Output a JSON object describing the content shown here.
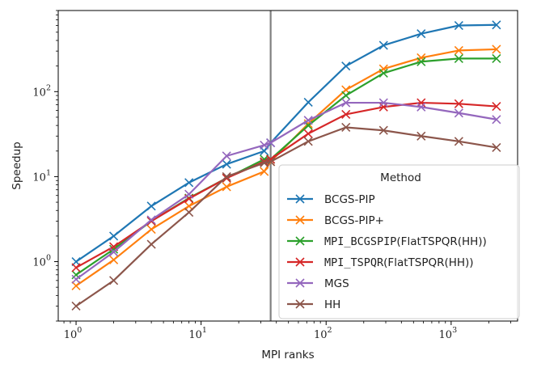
{
  "chart_data": {
    "type": "line",
    "xscale": "log",
    "yscale": "log",
    "xlabel": "MPI ranks",
    "ylabel": "Speedup",
    "xlim": [
      0.72,
      3400
    ],
    "ylim": [
      0.2,
      900
    ],
    "x_ticks": [
      {
        "value": 1,
        "base": "10",
        "exp": "0"
      },
      {
        "value": 10,
        "base": "10",
        "exp": "1"
      },
      {
        "value": 100,
        "base": "10",
        "exp": "2"
      },
      {
        "value": 1000,
        "base": "10",
        "exp": "3"
      }
    ],
    "y_ticks": [
      {
        "value": 1,
        "base": "10",
        "exp": "0"
      },
      {
        "value": 10,
        "base": "10",
        "exp": "1"
      },
      {
        "value": 100,
        "base": "10",
        "exp": "2"
      }
    ],
    "vline": {
      "x": 36,
      "color": "#808080"
    },
    "legend": {
      "title": "Method",
      "placement": "lower-right"
    },
    "x": [
      1,
      2,
      4,
      8,
      16,
      32,
      36,
      72,
      144,
      288,
      576,
      1152,
      2304
    ],
    "series": [
      {
        "name": "BCGS-PIP",
        "parts": [
          {
            "text": "BCGS-PIP",
            "mono": false
          }
        ],
        "color": "#1f77b4",
        "values": [
          1.0,
          2.0,
          4.5,
          8.5,
          14,
          20,
          25,
          75,
          200,
          350,
          480,
          600,
          610
        ]
      },
      {
        "name": "BCGS-PIP+",
        "parts": [
          {
            "text": "BCGS-PIP+",
            "mono": false
          }
        ],
        "color": "#ff7f0e",
        "values": [
          0.52,
          1.05,
          2.4,
          4.5,
          7.6,
          11.5,
          15,
          42,
          105,
          185,
          250,
          305,
          315
        ]
      },
      {
        "name": "MPI_BCGSPIP(FlatTSPQR(HH))",
        "parts": [
          {
            "text": "MPI_BCGSPIP",
            "mono": true
          },
          {
            "text": "(FlatTSPQR(HH))",
            "mono": false
          }
        ],
        "color": "#2ca02c",
        "values": [
          0.7,
          1.4,
          3.0,
          5.6,
          9.6,
          16,
          16,
          40,
          90,
          165,
          225,
          245,
          245
        ]
      },
      {
        "name": "MPI_TSPQR(FlatTSPQR(HH))",
        "parts": [
          {
            "text": "MPI_TSPQR",
            "mono": true
          },
          {
            "text": "(FlatTSPQR(HH))",
            "mono": false
          }
        ],
        "color": "#d62728",
        "values": [
          0.85,
          1.5,
          3.0,
          5.5,
          9.6,
          15,
          16,
          32,
          54,
          66,
          74,
          72,
          67
        ]
      },
      {
        "name": "MGS",
        "parts": [
          {
            "text": "MGS",
            "mono": false
          }
        ],
        "color": "#9467bd",
        "values": [
          0.62,
          1.3,
          3.1,
          6.2,
          17.5,
          23.5,
          25,
          46,
          74,
          74,
          66,
          56,
          47
        ]
      },
      {
        "name": "HH",
        "parts": [
          {
            "text": "HH",
            "mono": false
          }
        ],
        "color": "#8c564b",
        "values": [
          0.3,
          0.6,
          1.6,
          3.8,
          10,
          14.5,
          15,
          26,
          38,
          35,
          30,
          26,
          22
        ]
      }
    ]
  }
}
